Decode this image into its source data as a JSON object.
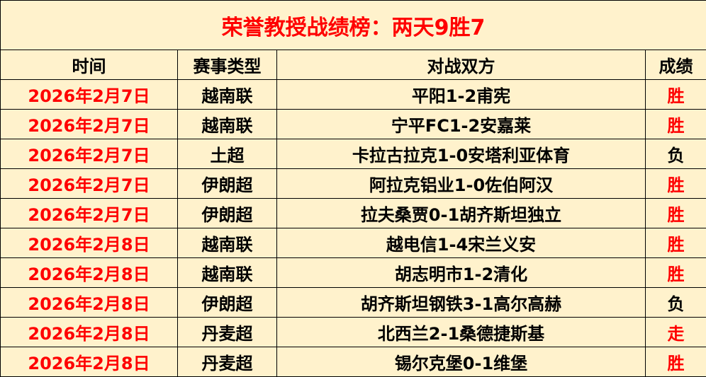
{
  "title": "荣誉教授战绩榜：两天9胜7",
  "headers": [
    "时间",
    "赛事类型",
    "对战双方",
    "成绩"
  ],
  "colors": {
    "win": "#ff0000",
    "draw": "#ff0000",
    "loss": "#000000",
    "date": "#ff0000",
    "background": "#fff2cc"
  },
  "rows": [
    {
      "date": "2026年2月7日",
      "league": "越南联",
      "match": "平阳1-2甫宪",
      "result": "胜"
    },
    {
      "date": "2026年2月7日",
      "league": "越南联",
      "match": "宁平FC1-2安嘉莱",
      "result": "胜"
    },
    {
      "date": "2026年2月7日",
      "league": "土超",
      "match": "卡拉古拉克1-0安塔利亚体育",
      "result": "负"
    },
    {
      "date": "2026年2月7日",
      "league": "伊朗超",
      "match": "阿拉克铝业1-0佐伯阿汉",
      "result": "胜"
    },
    {
      "date": "2026年2月7日",
      "league": "伊朗超",
      "match": "拉夫桑贾0-1胡齐斯坦独立",
      "result": "胜"
    },
    {
      "date": "2026年2月8日",
      "league": "越南联",
      "match": "越电信1-4宋兰义安",
      "result": "胜"
    },
    {
      "date": "2026年2月8日",
      "league": "越南联",
      "match": "胡志明市1-2清化",
      "result": "胜"
    },
    {
      "date": "2026年2月8日",
      "league": "伊朗超",
      "match": "胡齐斯坦钢铁3-1高尔高赫",
      "result": "负"
    },
    {
      "date": "2026年2月8日",
      "league": "丹麦超",
      "match": "北西兰2-1桑德捷斯基",
      "result": "走"
    },
    {
      "date": "2026年2月8日",
      "league": "丹麦超",
      "match": "锡尔克堡0-1维堡",
      "result": "胜"
    }
  ]
}
